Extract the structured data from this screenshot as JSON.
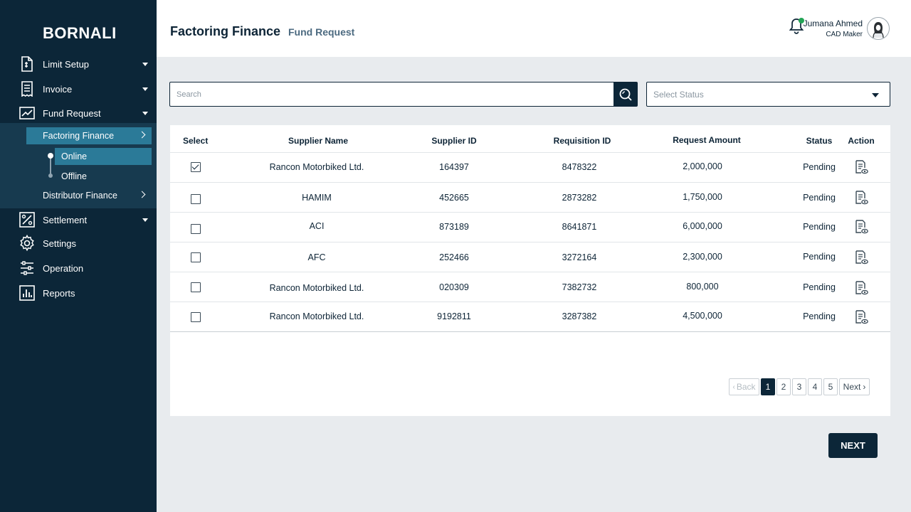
{
  "sidebar": {
    "brand": "BORNALI",
    "items": [
      {
        "label": "Limit Setup",
        "icon": "document-icon"
      },
      {
        "label": "Invoice",
        "icon": "receipt-icon"
      },
      {
        "label": "Fund Request",
        "icon": "chart-line-icon"
      },
      {
        "label": "Settlement",
        "icon": "percent-icon"
      },
      {
        "label": "Settings",
        "icon": "gear-icon"
      },
      {
        "label": "Operation",
        "icon": "sliders-icon"
      },
      {
        "label": "Reports",
        "icon": "bar-chart-icon"
      }
    ],
    "fund_request_sub": {
      "factoring": "Factoring Finance",
      "online": "Online",
      "offline": "Offline",
      "distributor": "Distributor Finance"
    }
  },
  "header": {
    "title": "Factoring Finance",
    "subtitle": "Fund Request",
    "user_name": "Jumana Ahmed",
    "user_role": "CAD Maker"
  },
  "search": {
    "placeholder": "Search"
  },
  "status_select": {
    "placeholder": "Select Status"
  },
  "table": {
    "headers": [
      "Select",
      "Supplier Name",
      "Supplier ID",
      "Requisition ID",
      "Request Amount",
      "Status",
      "Action"
    ],
    "rows": [
      {
        "checked": true,
        "supplier": "Rancon Motorbiked Ltd.",
        "supplier_id": "164397",
        "requisition_id": "8478322",
        "amount": "2,000,000",
        "status": "Pending"
      },
      {
        "checked": false,
        "supplier": "HAMIM",
        "supplier_id": "452665",
        "requisition_id": "2873282",
        "amount": "1,750,000",
        "status": "Pending"
      },
      {
        "checked": false,
        "supplier": "ACI",
        "supplier_id": "873189",
        "requisition_id": "8641871",
        "amount": "6,000,000",
        "status": "Pending"
      },
      {
        "checked": false,
        "supplier": "AFC",
        "supplier_id": "252466",
        "requisition_id": "3272164",
        "amount": "2,300,000",
        "status": "Pending"
      },
      {
        "checked": false,
        "supplier": "Rancon Motorbiked Ltd.",
        "supplier_id": "020309",
        "requisition_id": "7382732",
        "amount": "800,000",
        "status": "Pending"
      },
      {
        "checked": false,
        "supplier": "Rancon Motorbiked Ltd.",
        "supplier_id": "9192811",
        "requisition_id": "3287382",
        "amount": "4,500,000",
        "status": "Pending"
      }
    ]
  },
  "pagination": {
    "back": "Back",
    "pages": [
      "1",
      "2",
      "3",
      "4",
      "5"
    ],
    "current": "1",
    "next": "Next"
  },
  "footer": {
    "next_button": "NEXT"
  }
}
